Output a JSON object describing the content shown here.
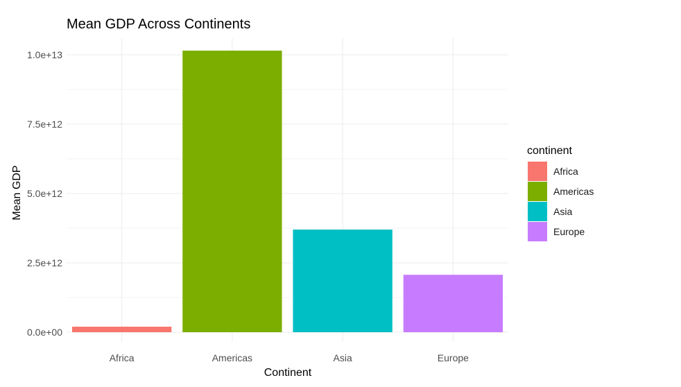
{
  "chart_data": {
    "type": "bar",
    "title": "Mean GDP Across Continents",
    "xlabel": "Continent",
    "ylabel": "Mean GDP",
    "categories": [
      "Africa",
      "Americas",
      "Asia",
      "Europe"
    ],
    "values": [
      200000000000.0,
      10150000000000.0,
      3700000000000.0,
      2070000000000.0
    ],
    "colors": [
      "#F8766D",
      "#7CAE00",
      "#00BFC4",
      "#C77CFF"
    ],
    "ylim": [
      0,
      10000000000000.0
    ],
    "yticks": [
      0,
      2500000000000.0,
      5000000000000.0,
      7500000000000.0,
      10000000000000.0
    ],
    "ytick_labels": [
      "0.0e+00",
      "2.5e+12",
      "5.0e+12",
      "7.5e+12",
      "1.0e+13"
    ],
    "grid": true,
    "legend": {
      "title": "continent",
      "position": "right",
      "entries": [
        "Africa",
        "Americas",
        "Asia",
        "Europe"
      ]
    }
  }
}
